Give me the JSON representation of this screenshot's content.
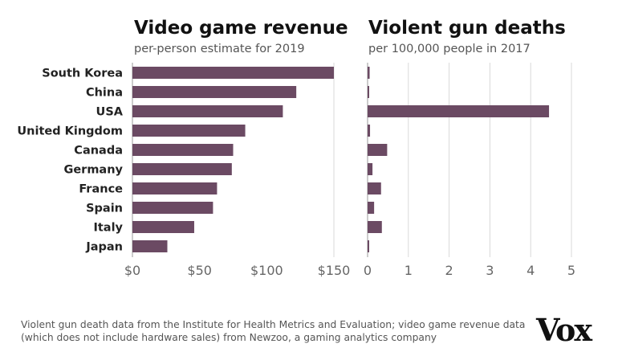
{
  "chart_data": [
    {
      "type": "bar",
      "orientation": "horizontal",
      "title": "Video game revenue",
      "subtitle": "per-person estimate for 2019",
      "categories": [
        "South Korea",
        "China",
        "USA",
        "United Kingdom",
        "Canada",
        "Germany",
        "France",
        "Spain",
        "Italy",
        "Japan"
      ],
      "values": [
        150,
        122,
        112,
        84,
        75,
        74,
        63,
        60,
        46,
        26
      ],
      "xlim": [
        0,
        150
      ],
      "xticks": [
        0,
        50,
        100,
        150
      ],
      "xtick_labels": [
        "$0",
        "$50",
        "$100",
        "$150"
      ],
      "color": "#6b4a63"
    },
    {
      "type": "bar",
      "orientation": "horizontal",
      "title": "Violent gun deaths",
      "subtitle": "per 100,000 people in 2017",
      "categories": [
        "South Korea",
        "China",
        "USA",
        "United Kingdom",
        "Canada",
        "Germany",
        "France",
        "Spain",
        "Italy",
        "Japan"
      ],
      "values": [
        0.05,
        0.03,
        4.45,
        0.06,
        0.48,
        0.12,
        0.33,
        0.16,
        0.35,
        0.03
      ],
      "xlim": [
        0,
        5
      ],
      "xticks": [
        0,
        1,
        2,
        3,
        4,
        5
      ],
      "xtick_labels": [
        "0",
        "1",
        "2",
        "3",
        "4",
        "5"
      ],
      "color": "#6b4a63"
    }
  ],
  "footnote": "Violent gun death data from the Institute for Health Metrics and Evaluation; video game revenue data (which does not include hardware sales) from Newzoo, a gaming analytics company",
  "logo": "Vox"
}
